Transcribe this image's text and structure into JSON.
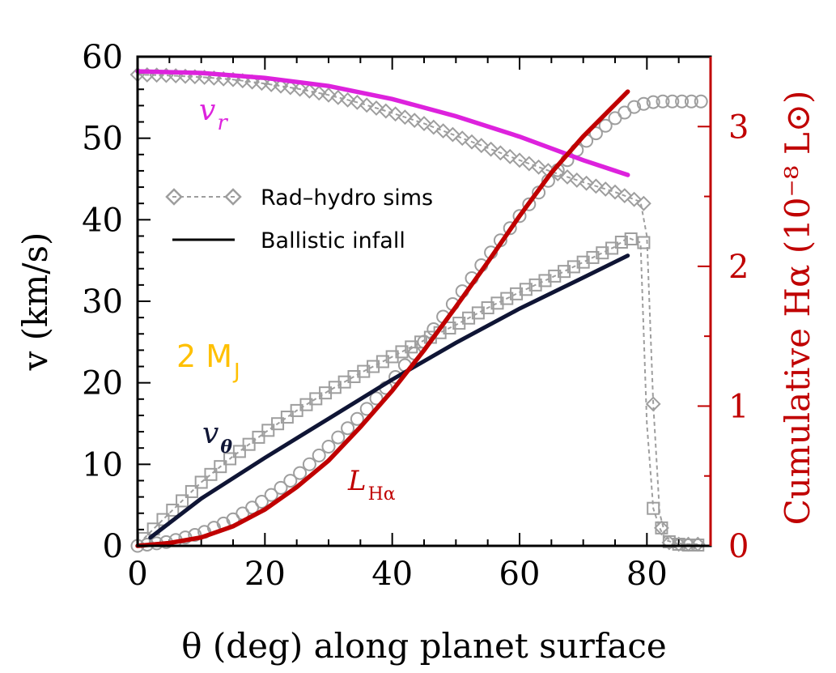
{
  "chart_data": {
    "type": "line",
    "xlabel": "θ (deg) along planet surface",
    "ylabel": "v (km/s)",
    "ylabel_right": "Cumulative Hα (10⁻⁸ L⊙)",
    "xlim": [
      0,
      90
    ],
    "ylim": [
      0,
      60
    ],
    "ylim_right": [
      0,
      3.5
    ],
    "x_ticks": [
      "0",
      "20",
      "40",
      "60",
      "80"
    ],
    "y_ticks": [
      "0",
      "10",
      "20",
      "30",
      "40",
      "50",
      "60"
    ],
    "y_ticks_right": [
      "0",
      "1",
      "2",
      "3"
    ],
    "legend": {
      "position": "upper-left",
      "entries": [
        {
          "label": "Rad–hydro sims",
          "style": "dashed-diamond",
          "color": "#9e9e9e"
        },
        {
          "label": "Ballistic infall",
          "style": "solid",
          "color": "#000000"
        }
      ]
    },
    "annotations": {
      "mass_label": "2 M",
      "mass_sub": "J",
      "vr_main": "v",
      "vr_sub": "r",
      "vtheta_main": "v",
      "vtheta_sub": "θ",
      "lha_main": "L",
      "lha_sub": "Hα"
    },
    "colors": {
      "vr": "#dd22dd",
      "vtheta": "#0f1535",
      "lha": "#c00000",
      "sims": "#9e9e9e",
      "mass_label": "#ffc000",
      "right_axis": "#c00000"
    },
    "series": [
      {
        "name": "vr ballistic",
        "axis": "left",
        "style": "solid",
        "x": [
          0,
          10,
          20,
          30,
          40,
          50,
          60,
          70,
          77
        ],
        "y": [
          58.2,
          58.0,
          57.4,
          56.4,
          54.8,
          52.7,
          50.2,
          47.3,
          45.5
        ]
      },
      {
        "name": "vtheta ballistic",
        "axis": "left",
        "style": "solid",
        "x": [
          2,
          10,
          20,
          30,
          40,
          50,
          60,
          70,
          77
        ],
        "y": [
          1.0,
          5.8,
          10.8,
          15.6,
          20.4,
          24.9,
          29.1,
          32.9,
          35.6
        ]
      },
      {
        "name": "LHa ballistic",
        "axis": "right",
        "style": "solid",
        "x": [
          0,
          5,
          10,
          15,
          20,
          25,
          30,
          35,
          40,
          45,
          50,
          55,
          60,
          65,
          70,
          77
        ],
        "y": [
          0.0,
          0.02,
          0.06,
          0.14,
          0.26,
          0.42,
          0.61,
          0.85,
          1.11,
          1.4,
          1.71,
          2.03,
          2.36,
          2.67,
          2.93,
          3.25
        ]
      },
      {
        "name": "vr sims",
        "axis": "left",
        "style": "dashed-diamond",
        "x": [
          0,
          5,
          10,
          15,
          20,
          25,
          30,
          35,
          40,
          45,
          50,
          55,
          60,
          65,
          70,
          75,
          79,
          80,
          81,
          82,
          83,
          85,
          87,
          89
        ],
        "y": [
          57.8,
          57.7,
          57.5,
          57.2,
          56.7,
          56.1,
          55.3,
          54.3,
          53.1,
          51.8,
          50.3,
          48.8,
          47.3,
          45.9,
          44.6,
          43.4,
          42.2,
          38.0,
          17.4,
          4.0,
          1.0,
          0.3,
          0.2,
          0.2
        ]
      },
      {
        "name": "vtheta sims",
        "axis": "left",
        "style": "dashed-square",
        "x": [
          1,
          5,
          10,
          15,
          20,
          25,
          30,
          35,
          40,
          45,
          50,
          55,
          60,
          65,
          70,
          75,
          77,
          79,
          80,
          81,
          82,
          83,
          85,
          87,
          89
        ],
        "y": [
          0.9,
          4.0,
          7.8,
          11.0,
          13.9,
          16.6,
          19.0,
          21.2,
          23.2,
          25.2,
          27.1,
          29.2,
          31.1,
          32.9,
          34.8,
          36.7,
          37.8,
          37.2,
          15.0,
          4.6,
          2.2,
          0.7,
          0.2,
          0.1,
          0.1
        ]
      },
      {
        "name": "LHa sims",
        "axis": "right",
        "style": "circle",
        "x": [
          0,
          5,
          10,
          15,
          20,
          25,
          30,
          35,
          40,
          45,
          50,
          55,
          60,
          65,
          70,
          75,
          78,
          80,
          82,
          84,
          86,
          88,
          89
        ],
        "y": [
          0.0,
          0.03,
          0.09,
          0.19,
          0.33,
          0.5,
          0.71,
          0.93,
          1.18,
          1.46,
          1.76,
          2.07,
          2.36,
          2.64,
          2.88,
          3.06,
          3.14,
          3.17,
          3.18,
          3.18,
          3.18,
          3.18,
          3.18
        ]
      }
    ]
  }
}
